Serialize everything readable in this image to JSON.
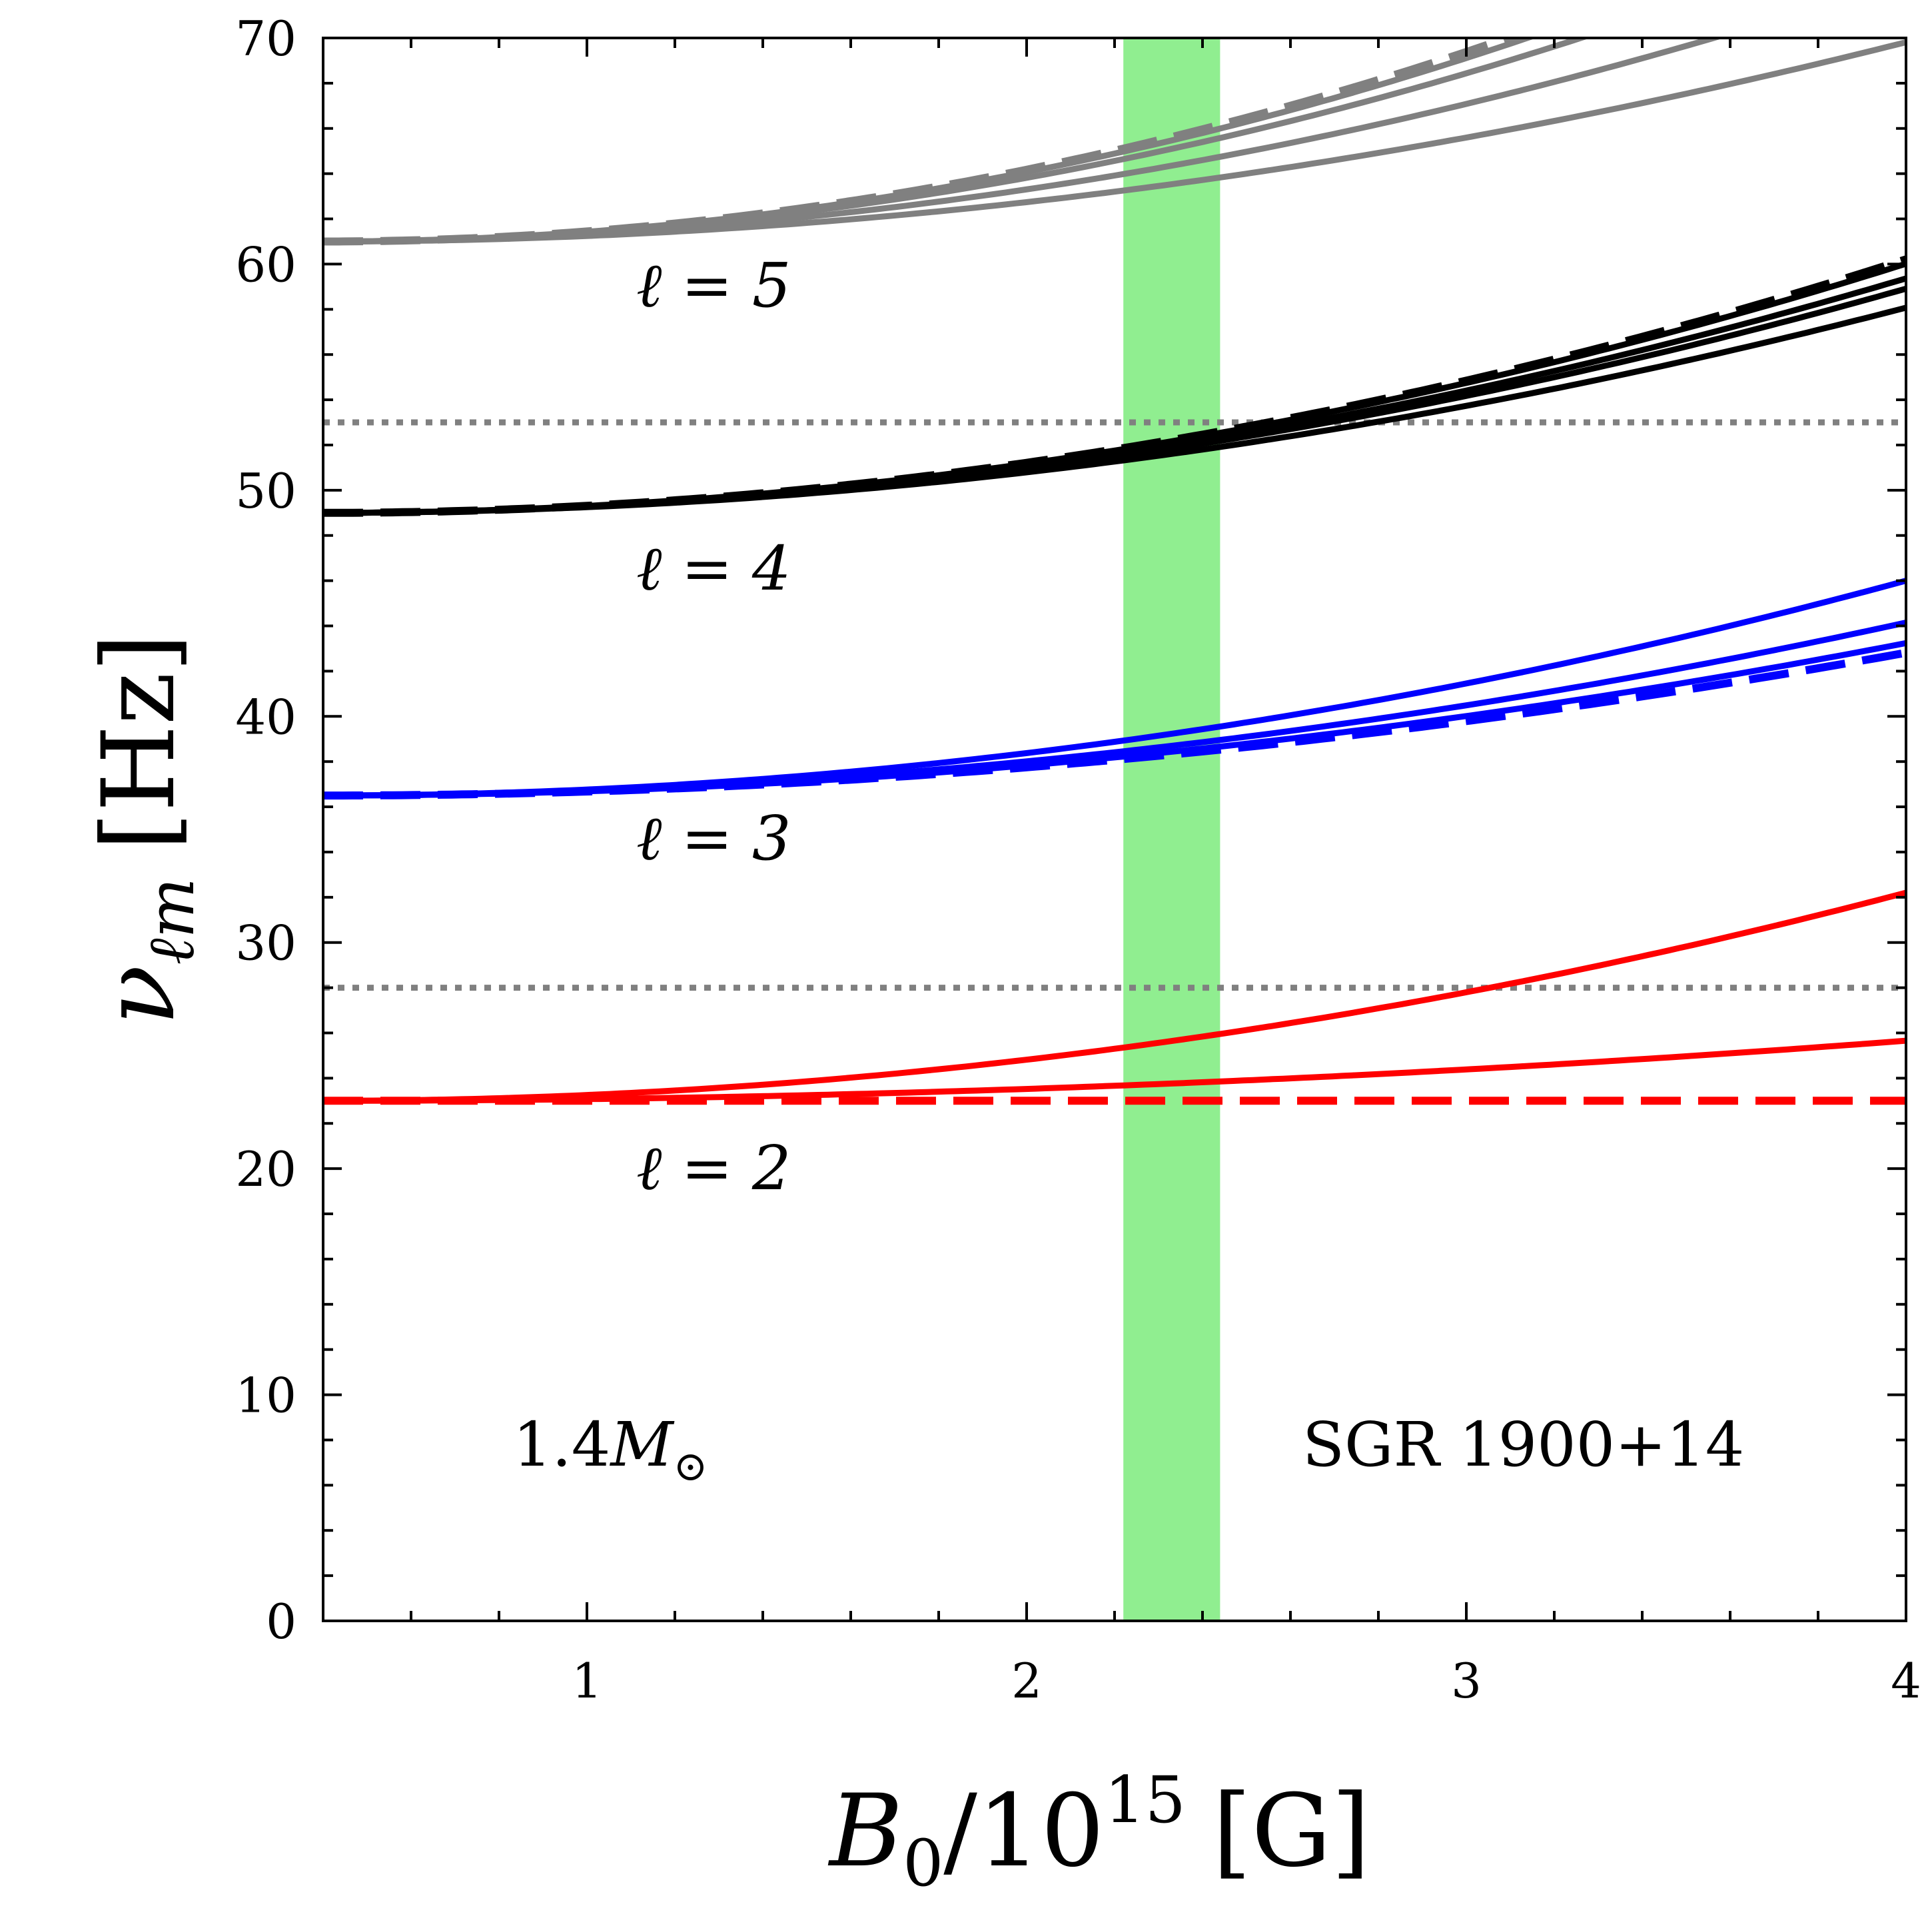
{
  "chart_data": {
    "type": "line",
    "xlabel": "B",
    "xlabel_sub": "0",
    "xlabel_mid": "/10",
    "xlabel_sup": "15",
    "xlabel_unit": "[G]",
    "ylabel": "ν",
    "ylabel_sub": "ℓm",
    "ylabel_unit": "[Hz]",
    "xlim": [
      0.4,
      4
    ],
    "ylim": [
      0,
      70
    ],
    "xticks": [
      1,
      2,
      3,
      4
    ],
    "yticks": [
      0,
      10,
      20,
      30,
      40,
      50,
      60,
      70
    ],
    "band": {
      "x0": 2.22,
      "x1": 2.44,
      "color": "#90ee90",
      "label": "SGR 1900+14"
    },
    "reference_lines": [
      {
        "y": 53,
        "color": "#808080",
        "style": "dotted"
      },
      {
        "y": 28,
        "color": "#808080",
        "style": "dotted"
      }
    ],
    "annotations": {
      "l5": "ℓ = 5",
      "l4": "ℓ = 4",
      "l3": "ℓ = 3",
      "l2": "ℓ = 2",
      "mass_value": "1.4",
      "mass_symbol": "M",
      "mass_sub": "⊙",
      "source": "SGR 1900+14"
    },
    "series": [
      {
        "name": "l2-m0",
        "group": "l2",
        "color": "#ff0000",
        "style": "dashed",
        "y0": 23.0,
        "a": 0.0
      },
      {
        "name": "l2-m1",
        "group": "l2",
        "color": "#ff0000",
        "style": "solid",
        "y0": 23.0,
        "a": 0.205
      },
      {
        "name": "l2-m2",
        "group": "l2",
        "color": "#ff0000",
        "style": "solid",
        "y0": 23.0,
        "a": 0.71
      },
      {
        "name": "l3-m0",
        "group": "l3",
        "color": "#0000ff",
        "style": "dashed",
        "y0": 36.5,
        "a": 0.487
      },
      {
        "name": "l3-m1",
        "group": "l3",
        "color": "#0000ff",
        "style": "solid",
        "y0": 36.5,
        "a": 0.52
      },
      {
        "name": "l3-m2",
        "group": "l3",
        "color": "#0000ff",
        "style": "solid",
        "y0": 36.5,
        "a": 0.59
      },
      {
        "name": "l3-m3",
        "group": "l3",
        "color": "#0000ff",
        "style": "solid",
        "y0": 36.5,
        "a": 0.733
      },
      {
        "name": "l4-m0",
        "group": "l4",
        "color": "#000000",
        "style": "dashed",
        "y0": 49.0,
        "a": 0.865
      },
      {
        "name": "l4-m1",
        "group": "l4",
        "color": "#000000",
        "style": "solid",
        "y0": 49.0,
        "a": 0.85
      },
      {
        "name": "l4-m2",
        "group": "l4",
        "color": "#000000",
        "style": "solid",
        "y0": 49.0,
        "a": 0.8
      },
      {
        "name": "l4-m3",
        "group": "l4",
        "color": "#000000",
        "style": "solid",
        "y0": 49.0,
        "a": 0.765
      },
      {
        "name": "l4-m4",
        "group": "l4",
        "color": "#000000",
        "style": "solid",
        "y0": 49.0,
        "a": 0.7
      },
      {
        "name": "l5-m0",
        "group": "l5",
        "color": "#808080",
        "style": "dashed",
        "y0": 61.0,
        "a": 1.24
      },
      {
        "name": "l5-m1",
        "group": "l5",
        "color": "#808080",
        "style": "solid",
        "y0": 61.0,
        "a": 1.2
      },
      {
        "name": "l5-m2",
        "group": "l5",
        "color": "#808080",
        "style": "solid",
        "y0": 61.0,
        "a": 1.1
      },
      {
        "name": "l5-m3",
        "group": "l5",
        "color": "#808080",
        "style": "solid",
        "y0": 61.0,
        "a": 0.9
      },
      {
        "name": "l5-m4",
        "group": "l5",
        "color": "#808080",
        "style": "solid",
        "y0": 61.0,
        "a": 0.68
      }
    ]
  }
}
